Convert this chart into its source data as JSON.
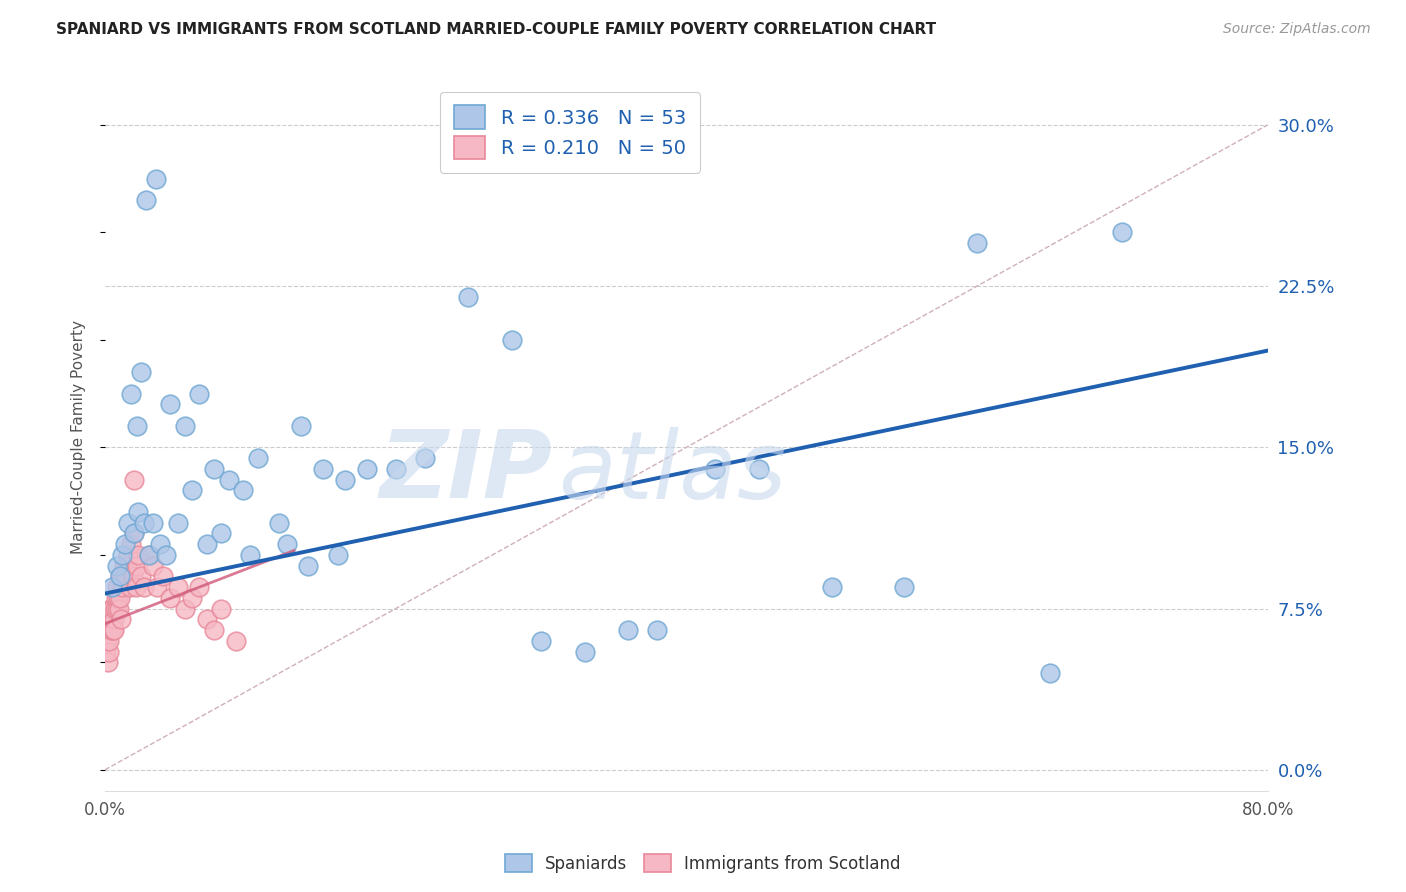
{
  "title": "SPANIARD VS IMMIGRANTS FROM SCOTLAND MARRIED-COUPLE FAMILY POVERTY CORRELATION CHART",
  "source": "Source: ZipAtlas.com",
  "ylabel": "Married-Couple Family Poverty",
  "ytick_vals": [
    0.0,
    7.5,
    15.0,
    22.5,
    30.0
  ],
  "xrange": [
    0.0,
    80.0
  ],
  "yrange": [
    -1.0,
    32.0
  ],
  "spaniard_color": "#aec6e8",
  "scotland_color": "#f5b8c4",
  "spaniard_edge": "#6fa8d4",
  "scotland_edge": "#e8899a",
  "trend_blue": "#2060b0",
  "trend_pink": "#d05878",
  "diag_color": "#d0b0b8",
  "watermark_color": "#c8d8ee",
  "blue_trend": [
    0.0,
    8.2,
    80.0,
    19.5
  ],
  "pink_trend": [
    0.0,
    6.8,
    13.0,
    10.2
  ],
  "diag_line": [
    0.0,
    0.0,
    80.0,
    30.0
  ],
  "sp_x": [
    1.8,
    2.2,
    2.5,
    2.8,
    3.5,
    4.5,
    5.5,
    6.5,
    7.5,
    8.5,
    9.5,
    10.5,
    12.0,
    13.5,
    15.0,
    16.5,
    18.0,
    20.0,
    22.0,
    25.0,
    28.0,
    30.0,
    33.0,
    36.0,
    38.0,
    42.0,
    45.0,
    50.0,
    55.0,
    60.0,
    65.0,
    70.0,
    0.5,
    0.8,
    1.0,
    1.2,
    1.4,
    1.6,
    2.0,
    2.3,
    2.7,
    3.0,
    3.3,
    3.8,
    4.2,
    5.0,
    6.0,
    7.0,
    8.0,
    10.0,
    12.5,
    14.0,
    16.0
  ],
  "sp_y": [
    17.5,
    16.0,
    18.5,
    26.5,
    27.5,
    17.0,
    16.0,
    17.5,
    14.0,
    13.5,
    13.0,
    14.5,
    11.5,
    16.0,
    14.0,
    13.5,
    14.0,
    14.0,
    14.5,
    22.0,
    20.0,
    6.0,
    5.5,
    6.5,
    6.5,
    14.0,
    14.0,
    8.5,
    8.5,
    24.5,
    4.5,
    25.0,
    8.5,
    9.5,
    9.0,
    10.0,
    10.5,
    11.5,
    11.0,
    12.0,
    11.5,
    10.0,
    11.5,
    10.5,
    10.0,
    11.5,
    13.0,
    10.5,
    11.0,
    10.0,
    10.5,
    9.5,
    10.0
  ],
  "sc_x": [
    0.1,
    0.15,
    0.2,
    0.25,
    0.3,
    0.35,
    0.4,
    0.45,
    0.5,
    0.55,
    0.6,
    0.65,
    0.7,
    0.75,
    0.8,
    0.85,
    0.9,
    0.95,
    1.0,
    1.05,
    1.1,
    1.15,
    1.2,
    1.3,
    1.4,
    1.5,
    1.6,
    1.7,
    1.8,
    1.9,
    2.0,
    2.1,
    2.2,
    2.3,
    2.5,
    2.7,
    3.0,
    3.3,
    3.6,
    4.0,
    4.5,
    5.0,
    5.5,
    6.0,
    6.5,
    7.0,
    7.5,
    8.0,
    9.0,
    2.0
  ],
  "sc_y": [
    5.5,
    6.0,
    5.0,
    5.5,
    6.0,
    7.5,
    6.5,
    7.0,
    7.5,
    6.5,
    7.0,
    6.5,
    7.5,
    8.0,
    7.5,
    8.5,
    8.0,
    7.5,
    9.0,
    8.0,
    7.0,
    9.0,
    8.5,
    9.5,
    9.0,
    9.5,
    10.0,
    8.5,
    10.5,
    9.0,
    11.0,
    8.5,
    9.5,
    10.0,
    9.0,
    8.5,
    10.0,
    9.5,
    8.5,
    9.0,
    8.0,
    8.5,
    7.5,
    8.0,
    8.5,
    7.0,
    6.5,
    7.5,
    6.0,
    13.5
  ]
}
